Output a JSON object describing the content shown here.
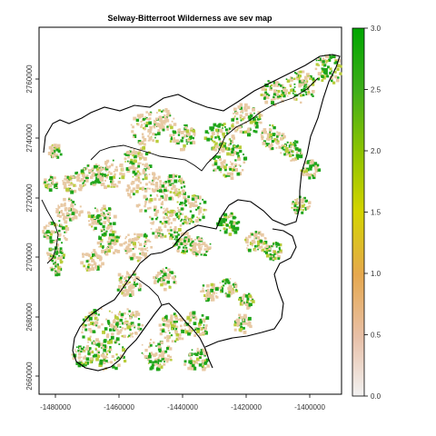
{
  "title": "Selway-Bitterroot Wilderness ave sev map",
  "x_axis": {
    "ticks": [
      "-1480000",
      "-1460000",
      "-1440000",
      "-1420000",
      "-1400000"
    ]
  },
  "y_axis": {
    "ticks": [
      "2660000",
      "2680000",
      "2700000",
      "2720000",
      "2740000",
      "2760000"
    ]
  },
  "legend": {
    "ticks": [
      "0.0",
      "0.5",
      "1.0",
      "1.5",
      "2.0",
      "2.5",
      "3.0"
    ],
    "min": 0,
    "max": 3,
    "colors": [
      "#f2f2f2",
      "#e8c0a8",
      "#e6a84e",
      "#d4d400",
      "#8fc400",
      "#3fae1a",
      "#00a600"
    ]
  },
  "palette": {
    "low": "#e8c9a4",
    "mid": "#b8cc3a",
    "high": "#1ea51a",
    "boundary": "#000000"
  }
}
